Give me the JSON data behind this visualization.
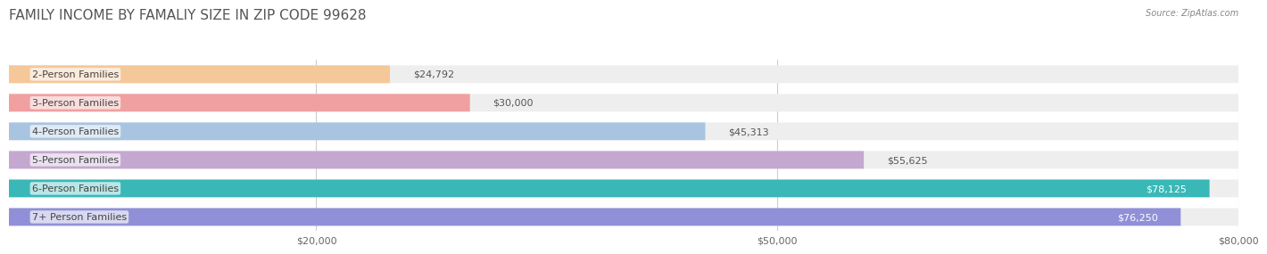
{
  "title": "FAMILY INCOME BY FAMALIY SIZE IN ZIP CODE 99628",
  "source": "Source: ZipAtlas.com",
  "categories": [
    "2-Person Families",
    "3-Person Families",
    "4-Person Families",
    "5-Person Families",
    "6-Person Families",
    "7+ Person Families"
  ],
  "values": [
    24792,
    30000,
    45313,
    55625,
    78125,
    76250
  ],
  "bar_colors": [
    "#f5c89a",
    "#f0a0a0",
    "#a8c4e0",
    "#c4a8d0",
    "#3ab8b8",
    "#9090d8"
  ],
  "bar_bg_color": "#eeeeee",
  "xlim": [
    0,
    80000
  ],
  "xticks": [
    20000,
    50000,
    80000
  ],
  "xtick_labels": [
    "$20,000",
    "$50,000",
    "$80,000"
  ],
  "value_labels": [
    "$24,792",
    "$30,000",
    "$45,313",
    "$55,625",
    "$78,125",
    "$76,250"
  ],
  "value_label_colors": [
    "#555555",
    "#555555",
    "#555555",
    "#555555",
    "#ffffff",
    "#ffffff"
  ],
  "title_fontsize": 11,
  "label_fontsize": 8,
  "bar_height": 0.62,
  "background_color": "#ffffff"
}
